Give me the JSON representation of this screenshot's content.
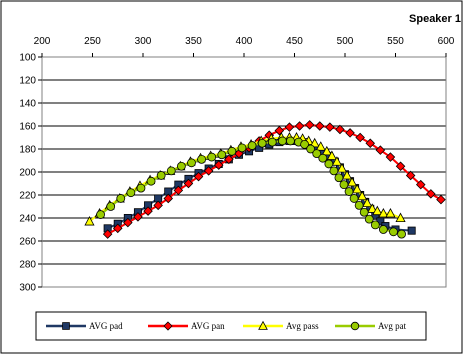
{
  "chart_data": {
    "type": "line",
    "title": "Speaker 1",
    "xlabel": "",
    "ylabel": "",
    "x_axis_position": "top",
    "y_axis_reversed": true,
    "xlim": [
      200,
      600
    ],
    "ylim": [
      100,
      300
    ],
    "x_ticks": [
      200,
      250,
      300,
      350,
      400,
      450,
      500,
      550,
      600
    ],
    "y_ticks": [
      100,
      120,
      140,
      160,
      180,
      200,
      220,
      240,
      260,
      280,
      300
    ],
    "grid": "horizontal",
    "legend_position": "bottom",
    "series": [
      {
        "name": "AVG pad",
        "color": "#1F3864",
        "marker": "square",
        "points": [
          [
            265,
            249
          ],
          [
            275,
            245
          ],
          [
            285,
            240
          ],
          [
            295,
            235
          ],
          [
            305,
            229
          ],
          [
            315,
            223
          ],
          [
            325,
            217
          ],
          [
            335,
            211
          ],
          [
            345,
            206
          ],
          [
            355,
            201
          ],
          [
            365,
            197
          ],
          [
            375,
            193
          ],
          [
            385,
            189
          ],
          [
            395,
            185
          ],
          [
            405,
            182
          ],
          [
            415,
            179
          ],
          [
            425,
            176
          ],
          [
            435,
            174
          ],
          [
            445,
            173
          ],
          [
            452,
            173
          ],
          [
            460,
            174
          ],
          [
            466,
            177
          ],
          [
            472,
            180
          ],
          [
            478,
            183
          ],
          [
            484,
            186
          ],
          [
            490,
            191
          ],
          [
            495,
            196
          ],
          [
            500,
            202
          ],
          [
            505,
            208
          ],
          [
            510,
            214
          ],
          [
            515,
            220
          ],
          [
            520,
            226
          ],
          [
            525,
            232
          ],
          [
            530,
            238
          ],
          [
            535,
            243
          ],
          [
            540,
            247
          ],
          [
            550,
            250
          ],
          [
            566,
            251
          ]
        ]
      },
      {
        "name": "AVG pan",
        "color": "#FF0000",
        "marker": "diamond",
        "points": [
          [
            265,
            254
          ],
          [
            275,
            249
          ],
          [
            285,
            244
          ],
          [
            295,
            239
          ],
          [
            305,
            234
          ],
          [
            315,
            229
          ],
          [
            325,
            223
          ],
          [
            335,
            216
          ],
          [
            345,
            210
          ],
          [
            355,
            204
          ],
          [
            365,
            199
          ],
          [
            375,
            194
          ],
          [
            385,
            189
          ],
          [
            395,
            184
          ],
          [
            405,
            179
          ],
          [
            415,
            173
          ],
          [
            425,
            168
          ],
          [
            435,
            164
          ],
          [
            445,
            161
          ],
          [
            455,
            160
          ],
          [
            465,
            159
          ],
          [
            475,
            160
          ],
          [
            485,
            161
          ],
          [
            495,
            163
          ],
          [
            505,
            166
          ],
          [
            515,
            170
          ],
          [
            525,
            175
          ],
          [
            535,
            181
          ],
          [
            545,
            187
          ],
          [
            555,
            195
          ],
          [
            565,
            203
          ],
          [
            575,
            211
          ],
          [
            585,
            219
          ],
          [
            595,
            224
          ]
        ]
      },
      {
        "name": "Avg pass",
        "color": "#FFFF00",
        "marker": "triangle",
        "points": [
          [
            247,
            243
          ],
          [
            257,
            236
          ],
          [
            267,
            229
          ],
          [
            277,
            223
          ],
          [
            287,
            217
          ],
          [
            297,
            212
          ],
          [
            307,
            207
          ],
          [
            317,
            203
          ],
          [
            327,
            199
          ],
          [
            337,
            195
          ],
          [
            347,
            191
          ],
          [
            357,
            188
          ],
          [
            367,
            186
          ],
          [
            377,
            184
          ],
          [
            387,
            181
          ],
          [
            397,
            178
          ],
          [
            407,
            176
          ],
          [
            417,
            173
          ],
          [
            427,
            171
          ],
          [
            437,
            170
          ],
          [
            445,
            170
          ],
          [
            452,
            170
          ],
          [
            458,
            171
          ],
          [
            464,
            173
          ],
          [
            470,
            175
          ],
          [
            476,
            178
          ],
          [
            482,
            182
          ],
          [
            487,
            186
          ],
          [
            492,
            191
          ],
          [
            497,
            197
          ],
          [
            502,
            203
          ],
          [
            507,
            209
          ],
          [
            512,
            215
          ],
          [
            517,
            221
          ],
          [
            522,
            227
          ],
          [
            527,
            232
          ],
          [
            532,
            234
          ],
          [
            538,
            236
          ],
          [
            545,
            236
          ],
          [
            555,
            240
          ]
        ]
      },
      {
        "name": "Avg pat",
        "color": "#99CC00",
        "marker": "circle",
        "points": [
          [
            258,
            237
          ],
          [
            268,
            230
          ],
          [
            278,
            223
          ],
          [
            288,
            218
          ],
          [
            298,
            214
          ],
          [
            308,
            208
          ],
          [
            318,
            203
          ],
          [
            328,
            199
          ],
          [
            338,
            195
          ],
          [
            348,
            192
          ],
          [
            358,
            189
          ],
          [
            368,
            187
          ],
          [
            378,
            185
          ],
          [
            388,
            182
          ],
          [
            398,
            179
          ],
          [
            408,
            177
          ],
          [
            418,
            175
          ],
          [
            428,
            174
          ],
          [
            438,
            173
          ],
          [
            446,
            173
          ],
          [
            454,
            174
          ],
          [
            460,
            176
          ],
          [
            466,
            180
          ],
          [
            472,
            184
          ],
          [
            478,
            188
          ],
          [
            484,
            193
          ],
          [
            489,
            199
          ],
          [
            494,
            205
          ],
          [
            499,
            211
          ],
          [
            504,
            217
          ],
          [
            509,
            223
          ],
          [
            514,
            229
          ],
          [
            519,
            235
          ],
          [
            524,
            241
          ],
          [
            530,
            246
          ],
          [
            538,
            250
          ],
          [
            548,
            252
          ],
          [
            556,
            254
          ]
        ]
      }
    ]
  }
}
